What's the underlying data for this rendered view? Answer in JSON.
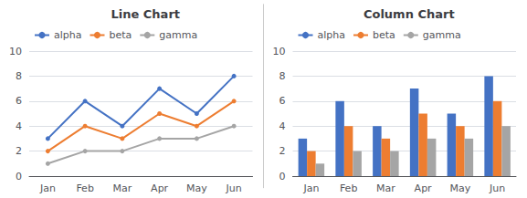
{
  "chart_data": [
    {
      "type": "line",
      "title": "Line Chart",
      "categories": [
        "Jan",
        "Feb",
        "Mar",
        "Apr",
        "May",
        "Jun"
      ],
      "series": [
        {
          "name": "alpha",
          "color": "#4472C4",
          "values": [
            3,
            6,
            4,
            7,
            5,
            8
          ]
        },
        {
          "name": "beta",
          "color": "#ED7D31",
          "values": [
            2,
            4,
            3,
            5,
            4,
            6
          ]
        },
        {
          "name": "gamma",
          "color": "#A5A5A5",
          "values": [
            1,
            2,
            2,
            3,
            3,
            4
          ]
        }
      ],
      "ylim": [
        0,
        10
      ],
      "yticks": [
        0,
        2,
        4,
        6,
        8,
        10
      ],
      "grid": true,
      "legend": "upper left",
      "marker": "circle"
    },
    {
      "type": "bar",
      "title": "Column Chart",
      "categories": [
        "Jan",
        "Feb",
        "Mar",
        "Apr",
        "May",
        "Jun"
      ],
      "series": [
        {
          "name": "alpha",
          "color": "#4472C4",
          "values": [
            3,
            6,
            4,
            7,
            5,
            8
          ]
        },
        {
          "name": "beta",
          "color": "#ED7D31",
          "values": [
            2,
            4,
            3,
            5,
            4,
            6
          ]
        },
        {
          "name": "gamma",
          "color": "#A5A5A5",
          "values": [
            1,
            2,
            2,
            3,
            3,
            4
          ]
        }
      ],
      "ylim": [
        0,
        10
      ],
      "yticks": [
        0,
        2,
        4,
        6,
        8,
        10
      ],
      "grid": true,
      "legend": "upper left"
    }
  ]
}
